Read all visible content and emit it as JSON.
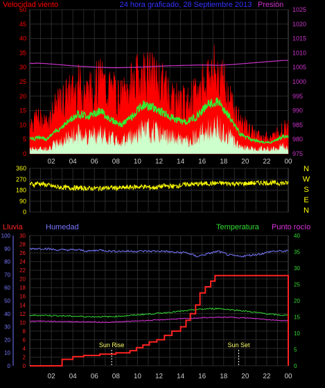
{
  "colors": {
    "wind_speed": "#ff0000",
    "wind_avg": "#33ee33",
    "wind_min": "#ccffcc",
    "pressure": "#cc33cc",
    "direction": "#ffff00",
    "rain": "#ff2222",
    "humidity": "#7777ff",
    "temperature": "#33dd33",
    "dewpoint": "#dd33dd",
    "grid": "#2a2a2a",
    "axis_text": "#cccccc",
    "sun_text": "#ffff66",
    "title": "#3333ff"
  },
  "x_ticks": [
    "02",
    "04",
    "06",
    "08",
    "10",
    "12",
    "14",
    "16",
    "18",
    "20",
    "22",
    "00"
  ],
  "chart_data": [
    {
      "type": "line",
      "title": "24 hora graficado,  28 Septiembre 2013",
      "left_label": "Velocidad viento",
      "right_label": "Presión",
      "x_start_hour": 0,
      "x_end_hour": 24,
      "ylim_left": [
        0,
        50
      ],
      "yticks_left": [
        0,
        5,
        10,
        15,
        20,
        25,
        30,
        35,
        40,
        45,
        50
      ],
      "ylim_right": [
        975,
        1025
      ],
      "yticks_right": [
        975,
        980,
        985,
        990,
        995,
        1000,
        1005,
        1010,
        1015,
        1020,
        1025
      ],
      "grid": true,
      "hourly_gust": [
        13,
        11,
        17,
        21,
        24,
        22,
        26,
        23,
        20,
        25,
        29,
        27,
        24,
        20,
        18,
        21,
        28,
        30,
        20,
        12,
        8,
        6,
        6,
        9
      ],
      "hourly_avg": [
        6,
        5,
        8,
        11,
        14,
        13,
        15,
        12,
        10,
        13,
        17,
        16,
        14,
        12,
        11,
        13,
        17,
        18,
        13,
        7,
        5,
        4,
        4,
        6
      ],
      "hourly_min": [
        2,
        2,
        4,
        6,
        8,
        7,
        8,
        6,
        5,
        7,
        9,
        9,
        7,
        6,
        5,
        7,
        9,
        10,
        7,
        3,
        2,
        2,
        2,
        3
      ],
      "hourly_pressure": [
        1006.5,
        1006.3,
        1006.0,
        1005.7,
        1005.4,
        1005.2,
        1005.0,
        1004.9,
        1004.9,
        1005.0,
        1005.1,
        1005.3,
        1005.5,
        1005.6,
        1005.7,
        1005.8,
        1005.8,
        1005.7,
        1005.9,
        1006.2,
        1006.5,
        1006.8,
        1007.1,
        1007.4
      ]
    },
    {
      "type": "line",
      "title": "",
      "ylim": [
        0,
        360
      ],
      "yticks": [
        0,
        90,
        180,
        270,
        360
      ],
      "right_labels": [
        "N",
        "W",
        "S",
        "E",
        "N"
      ],
      "hourly_direction": [
        240,
        225,
        205,
        200,
        198,
        195,
        196,
        200,
        198,
        205,
        210,
        200,
        215,
        212,
        228,
        230,
        235,
        238,
        236,
        232,
        238,
        242,
        240,
        238
      ]
    },
    {
      "type": "line",
      "title": "",
      "labels": [
        "Lluvia",
        "Humedad",
        "Temperatura",
        "Punto rocío"
      ],
      "ylim_humidity": [
        0,
        100
      ],
      "yticks_humidity": [
        0,
        10,
        20,
        30,
        40,
        50,
        60,
        70,
        80,
        90,
        100
      ],
      "ylim_rain": [
        0,
        30
      ],
      "yticks_rain": [
        0,
        2,
        4,
        6,
        8,
        10,
        12,
        14,
        16,
        18,
        20,
        22,
        24,
        26,
        28,
        30
      ],
      "ylim_temp": [
        0,
        40
      ],
      "yticks_temp": [
        0,
        5,
        10,
        15,
        20,
        25,
        30,
        35,
        40
      ],
      "annotations": [
        "Sun Rise",
        "Sun Set"
      ],
      "sunrise_hour": 7.6,
      "sunset_hour": 19.4,
      "rain_steps": [
        [
          0,
          0
        ],
        [
          3,
          1.5
        ],
        [
          4,
          2.1
        ],
        [
          5,
          2.4
        ],
        [
          6.5,
          2.7
        ],
        [
          8,
          3.0
        ],
        [
          9.3,
          3.5
        ],
        [
          9.9,
          4.2
        ],
        [
          10.5,
          4.8
        ],
        [
          11.1,
          5.5
        ],
        [
          11.8,
          6.0
        ],
        [
          12.5,
          7.0
        ],
        [
          13.2,
          8.0
        ],
        [
          14.0,
          9.0
        ],
        [
          14.5,
          10.5
        ],
        [
          14.9,
          12.0
        ],
        [
          15.4,
          14.0
        ],
        [
          15.8,
          16.8
        ],
        [
          16.3,
          18.2
        ],
        [
          16.8,
          19.5
        ],
        [
          17.2,
          20.8
        ],
        [
          23.8,
          20.8
        ],
        [
          24,
          0
        ]
      ],
      "hourly_humidity": [
        90,
        90,
        89,
        89,
        89,
        88,
        89,
        88,
        88,
        88,
        88,
        88,
        88,
        87,
        87,
        84,
        86,
        88,
        85,
        84,
        85,
        86,
        88,
        88
      ],
      "hourly_temperature": [
        15.5,
        15.5,
        15.4,
        15.3,
        15.2,
        15.1,
        15.1,
        15.1,
        15.3,
        15.5,
        15.8,
        16.0,
        16.3,
        16.6,
        16.9,
        17.3,
        17.5,
        17.6,
        17.3,
        17.0,
        16.6,
        16.2,
        15.8,
        15.5
      ],
      "hourly_dewpoint": [
        13.8,
        13.7,
        13.6,
        13.6,
        13.5,
        13.5,
        13.4,
        13.4,
        13.5,
        13.7,
        13.9,
        14.0,
        14.2,
        14.4,
        14.5,
        14.7,
        14.8,
        14.9,
        14.9,
        14.8,
        14.6,
        14.4,
        14.1,
        13.9
      ]
    }
  ]
}
